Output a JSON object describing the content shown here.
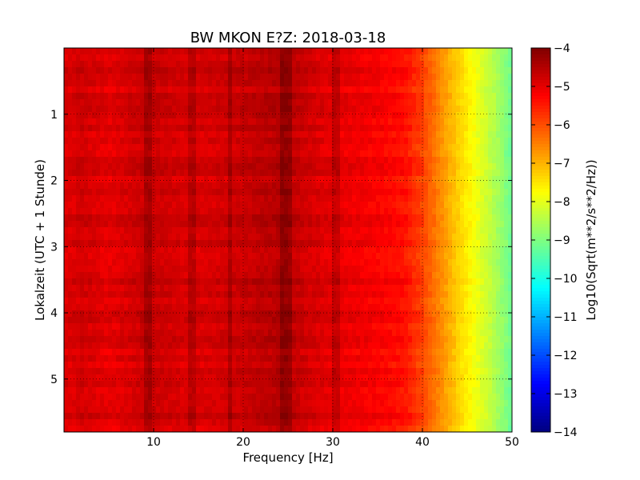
{
  "chart_data": {
    "type": "heatmap",
    "title": "BW MKON E?Z: 2018-03-18",
    "xlabel": "Frequency [Hz]",
    "ylabel": "Lokalzeit (UTC + 1 Stunde)",
    "xlim": [
      0,
      50
    ],
    "ylim": [
      5.8,
      0
    ],
    "x_ticks": [
      10,
      20,
      30,
      40,
      50
    ],
    "x_tick_labels": [
      "10",
      "20",
      "30",
      "40",
      "50"
    ],
    "y_ticks": [
      1,
      2,
      3,
      4,
      5
    ],
    "y_tick_labels": [
      "1",
      "2",
      "3",
      "4",
      "5"
    ],
    "grid": true,
    "colorbar": {
      "label": "Log10(Sqrt(m**2/s**2/Hz))",
      "colormap": "jet",
      "range": [
        -14,
        -4
      ],
      "ticks": [
        -4,
        -5,
        -6,
        -7,
        -8,
        -9,
        -10,
        -11,
        -12,
        -13,
        -14
      ],
      "tick_labels": [
        "−4",
        "−5",
        "−6",
        "−7",
        "−8",
        "−9",
        "−10",
        "−11",
        "−12",
        "−13",
        "−14"
      ]
    },
    "frequency_profile_hz": [
      0,
      1,
      2,
      5,
      9.5,
      14,
      18,
      24.5,
      27,
      30,
      35,
      38,
      40,
      42,
      44,
      46,
      48,
      50
    ],
    "frequency_profile_log10": [
      -4.9,
      -4.9,
      -4.8,
      -5.0,
      -4.7,
      -4.9,
      -4.8,
      -4.5,
      -4.8,
      -5.0,
      -5.2,
      -5.4,
      -5.9,
      -6.6,
      -7.3,
      -7.9,
      -8.5,
      -9.2
    ],
    "narrowband_lines_hz": [
      9.4,
      14.2,
      18.5,
      24.3,
      24.9,
      30.3
    ]
  }
}
